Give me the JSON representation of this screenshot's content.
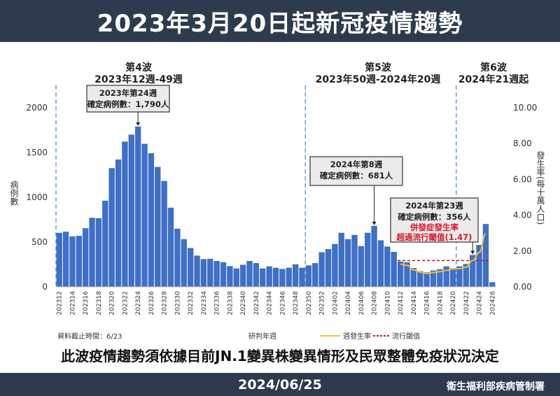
{
  "header": {
    "title": "2023年3月20日起新冠疫情趨勢"
  },
  "subtitle": "此波疫情趨勢須依據目前JN.1變異株變異情形及民眾整體免疫狀況決定",
  "footer": {
    "date": "2024/06/25",
    "agency": "衛生福利部疾病管制署"
  },
  "chart_data": {
    "type": "bar",
    "xlabel": "研判年週",
    "ylabel": "病例數",
    "y2label": "發生率(每十萬人口)",
    "ylim": [
      0,
      2000
    ],
    "y2lim": [
      0,
      10
    ],
    "yticks": [
      "0",
      "500",
      "1000",
      "1500",
      "2000"
    ],
    "y2ticks": [
      "0.00",
      "2.00",
      "4.00",
      "6.00",
      "8.00",
      "10.00"
    ],
    "categories": [
      "202312",
      "202313",
      "202314",
      "202315",
      "202316",
      "202317",
      "202318",
      "202319",
      "202320",
      "202321",
      "202322",
      "202323",
      "202324",
      "202325",
      "202326",
      "202327",
      "202328",
      "202329",
      "202330",
      "202331",
      "202332",
      "202333",
      "202334",
      "202335",
      "202336",
      "202337",
      "202338",
      "202339",
      "202340",
      "202341",
      "202342",
      "202343",
      "202344",
      "202345",
      "202346",
      "202347",
      "202348",
      "202349",
      "202350",
      "202351",
      "202352",
      "202401",
      "202402",
      "202403",
      "202404",
      "202405",
      "202406",
      "202407",
      "202408",
      "202409",
      "202410",
      "202411",
      "202412",
      "202413",
      "202414",
      "202415",
      "202416",
      "202417",
      "202418",
      "202419",
      "202420",
      "202421",
      "202422",
      "202423",
      "202424",
      "202425",
      "202426"
    ],
    "values": [
      603,
      616,
      564,
      570,
      655,
      772,
      767,
      962,
      1326,
      1422,
      1622,
      1700,
      1790,
      1597,
      1492,
      1339,
      1183,
      884,
      650,
      533,
      434,
      349,
      310,
      314,
      289,
      275,
      232,
      205,
      247,
      289,
      265,
      205,
      229,
      213,
      200,
      213,
      252,
      213,
      240,
      265,
      387,
      422,
      478,
      604,
      533,
      580,
      455,
      604,
      681,
      520,
      450,
      390,
      283,
      275,
      210,
      175,
      163,
      183,
      197,
      229,
      210,
      229,
      255,
      356,
      468,
      702,
      52
    ],
    "rate_series": {
      "name": "週發生率",
      "color": "#f2c12e",
      "categories": [
        "202412",
        "202413",
        "202414",
        "202415",
        "202416",
        "202417",
        "202418",
        "202419",
        "202420",
        "202421",
        "202422",
        "202423",
        "202424",
        "202425"
      ],
      "values": [
        1.27,
        1.2,
        0.95,
        0.82,
        0.75,
        0.8,
        0.85,
        0.92,
        1.0,
        1.02,
        1.1,
        1.47,
        1.92,
        2.96
      ]
    },
    "threshold": {
      "name": "流行閾值",
      "value": 1.47,
      "color": "#c0142a",
      "from": "202412",
      "to": "202425"
    },
    "bar_color": "#3f6fc6",
    "waves": [
      {
        "title": "第4波",
        "range": "2023年12週-49週",
        "start": "202312"
      },
      {
        "title": "第5波",
        "range": "2023年50週-2024年20週",
        "start": "202350"
      },
      {
        "title": "第6波",
        "range": "2024年21週起",
        "start": "202421"
      }
    ],
    "annotations": [
      {
        "line1": "2023年第24週",
        "line2": "確定病例數：1,790人",
        "target": "202324"
      },
      {
        "line1": "2024年第8週",
        "line2": "確定病例數：681人",
        "target": "202408"
      },
      {
        "line1": "2024年第23週",
        "line2": "確定病例數：356人",
        "line3": "併發症發生率",
        "line4": "超過流行閾值(1.47)",
        "target": "202423"
      }
    ],
    "data_cutoff": "資料截止時間：6/23",
    "legend": {
      "rate": "週發生率",
      "threshold": "流行閾值"
    }
  }
}
